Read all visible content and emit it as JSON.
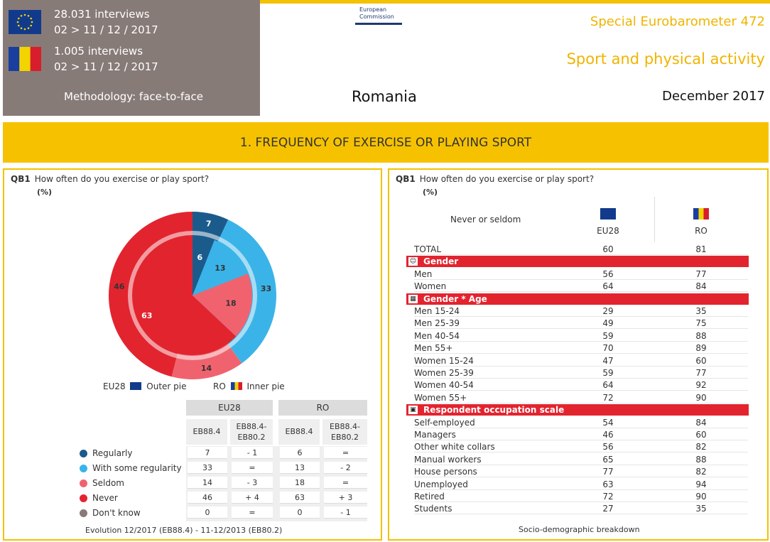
{
  "header": {
    "eu_interviews": "28.031 interviews",
    "eu_dates": "02 > 11 / 12 / 2017",
    "ro_interviews": "1.005 interviews",
    "ro_dates": "02 > 11 / 12 / 2017",
    "methodology": "Methodology: face-to-face",
    "ec_logo_line1": "European",
    "ec_logo_line2": "Commission",
    "survey": "Special Eurobarometer 472",
    "topic": "Sport and physical activity",
    "country": "Romania",
    "date": "December 2017",
    "section_title": "1. FREQUENCY OF EXERCISE OR PLAYING SPORT"
  },
  "colors": {
    "regularly": "#1b5b8c",
    "some_regularity": "#3ab4e8",
    "seldom": "#f0636e",
    "never": "#e2242f",
    "dont_know": "#877b78",
    "accent": "#f6c200"
  },
  "left": {
    "qb": "QB1",
    "question": "How often do you exercise or play sport?",
    "pct": "(%)",
    "legend_eu": "EU28",
    "legend_eu_suffix": "Outer pie",
    "legend_ro": "RO",
    "legend_ro_suffix": "Inner pie",
    "table_head_eu": "EU28",
    "table_head_ro": "RO",
    "sub_eb": "EB88.4",
    "sub_diff_1": "EB88.4-",
    "sub_diff_2": "EB80.2",
    "rows": [
      {
        "label": "Regularly",
        "eu": "7",
        "eu_diff": "- 1",
        "ro": "6",
        "ro_diff": "="
      },
      {
        "label": "With some regularity",
        "eu": "33",
        "eu_diff": "=",
        "ro": "13",
        "ro_diff": "- 2"
      },
      {
        "label": "Seldom",
        "eu": "14",
        "eu_diff": "- 3",
        "ro": "18",
        "ro_diff": "="
      },
      {
        "label": "Never",
        "eu": "46",
        "eu_diff": "+ 4",
        "ro": "63",
        "ro_diff": "+ 3"
      },
      {
        "label": "Don't know",
        "eu": "0",
        "eu_diff": "=",
        "ro": "0",
        "ro_diff": "- 1"
      }
    ],
    "footnote": "Evolution 12/2017 (EB88.4) - 11-12/2013 (EB80.2)"
  },
  "chart_data": {
    "type": "pie",
    "categories": [
      "Regularly",
      "With some regularity",
      "Seldom",
      "Never",
      "Don't know"
    ],
    "series": [
      {
        "name": "EU28",
        "ring": "outer",
        "values": [
          7,
          33,
          14,
          46,
          0
        ]
      },
      {
        "name": "RO",
        "ring": "inner",
        "values": [
          6,
          13,
          18,
          63,
          0
        ]
      }
    ]
  },
  "right": {
    "qb": "QB1",
    "question": "How often do you exercise or play sport?",
    "pct": "(%)",
    "subtitle": "Never or seldom",
    "col1": "EU28",
    "col2": "RO",
    "total": {
      "label": "TOTAL",
      "eu": "60",
      "ro": "81"
    },
    "sections": [
      {
        "title": "Gender",
        "icon": "people-icon",
        "rows": [
          {
            "label": "Men",
            "eu": "56",
            "ro": "77"
          },
          {
            "label": "Women",
            "eu": "64",
            "ro": "84"
          }
        ]
      },
      {
        "title": "Gender * Age",
        "icon": "calendar-icon",
        "rows": [
          {
            "label": "Men 15-24",
            "eu": "29",
            "ro": "35"
          },
          {
            "label": "Men 25-39",
            "eu": "49",
            "ro": "75"
          },
          {
            "label": "Men 40-54",
            "eu": "59",
            "ro": "88"
          },
          {
            "label": "Men 55+",
            "eu": "70",
            "ro": "89"
          },
          {
            "label": "Women 15-24",
            "eu": "47",
            "ro": "60"
          },
          {
            "label": "Women 25-39",
            "eu": "59",
            "ro": "77"
          },
          {
            "label": "Women 40-54",
            "eu": "64",
            "ro": "92"
          },
          {
            "label": "Women 55+",
            "eu": "72",
            "ro": "90"
          }
        ]
      },
      {
        "title": "Respondent occupation scale",
        "icon": "briefcase-icon",
        "rows": [
          {
            "label": "Self-employed",
            "eu": "54",
            "ro": "84"
          },
          {
            "label": "Managers",
            "eu": "46",
            "ro": "60"
          },
          {
            "label": "Other white collars",
            "eu": "56",
            "ro": "82"
          },
          {
            "label": "Manual workers",
            "eu": "65",
            "ro": "88"
          },
          {
            "label": "House persons",
            "eu": "77",
            "ro": "82"
          },
          {
            "label": "Unemployed",
            "eu": "63",
            "ro": "94"
          },
          {
            "label": "Retired",
            "eu": "72",
            "ro": "90"
          },
          {
            "label": "Students",
            "eu": "27",
            "ro": "35"
          }
        ]
      }
    ],
    "footnote": "Socio-demographic breakdown"
  }
}
